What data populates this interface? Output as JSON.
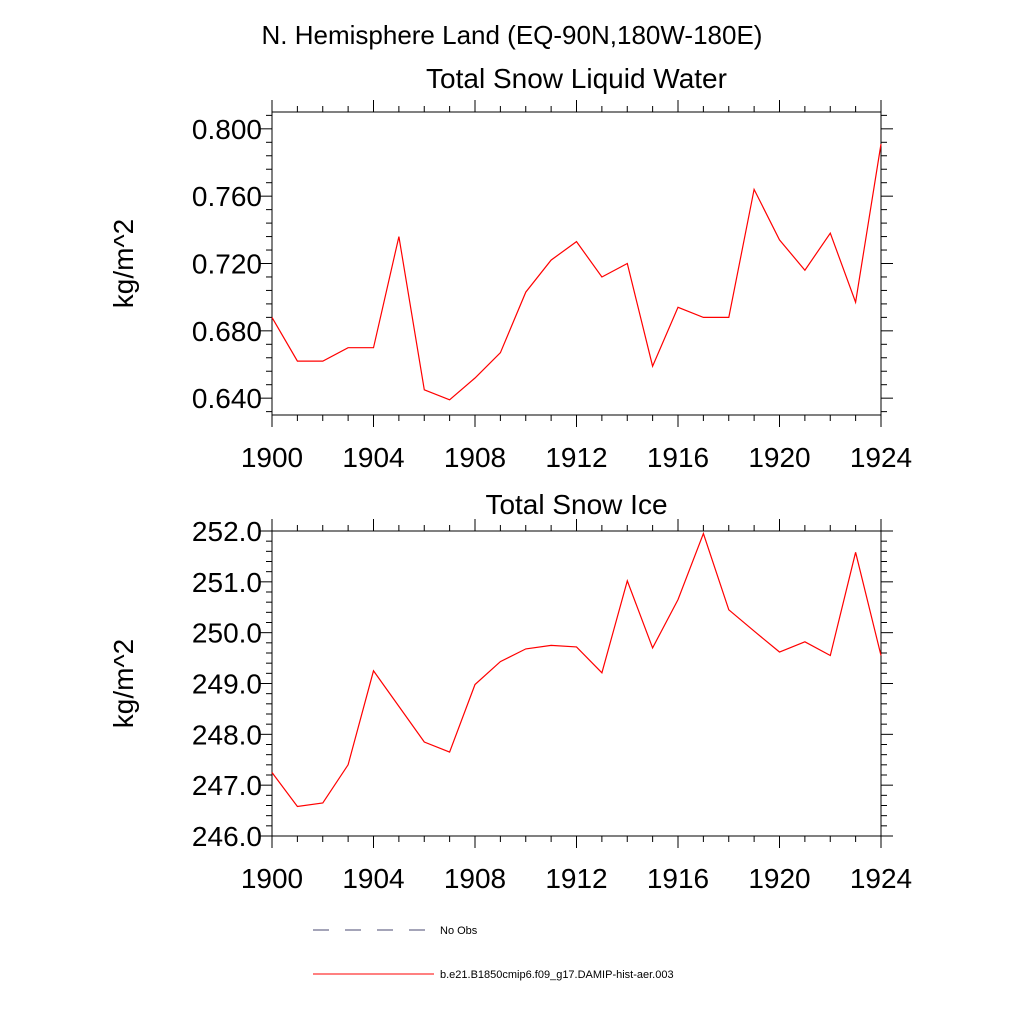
{
  "title": "N. Hemisphere Land (EQ-90N,180W-180E)",
  "chart_data": [
    {
      "type": "line",
      "title": "Total Snow Liquid Water",
      "ylabel": "kg/m^2",
      "xlim": [
        1900,
        1924
      ],
      "ylim": [
        0.63,
        0.81
      ],
      "x_ticks": [
        1900,
        1904,
        1908,
        1912,
        1916,
        1920,
        1924
      ],
      "x_tick_labels": [
        "1900",
        "1904",
        "1908",
        "1912",
        "1916",
        "1920",
        "1924"
      ],
      "y_ticks": [
        0.64,
        0.68,
        0.72,
        0.76,
        0.8
      ],
      "y_tick_labels": [
        "0.640",
        "0.680",
        "0.720",
        "0.760",
        "0.800"
      ],
      "series": [
        {
          "name": "b.e21.B1850cmip6.f09_g17.DAMIP-hist-aer.003",
          "color": "#ff0000",
          "x": [
            1900,
            1901,
            1902,
            1903,
            1904,
            1905,
            1906,
            1907,
            1908,
            1909,
            1910,
            1911,
            1912,
            1913,
            1914,
            1915,
            1916,
            1917,
            1918,
            1919,
            1920,
            1921,
            1922,
            1923,
            1924
          ],
          "y": [
            0.688,
            0.662,
            0.662,
            0.67,
            0.67,
            0.736,
            0.645,
            0.639,
            0.652,
            0.667,
            0.703,
            0.722,
            0.733,
            0.712,
            0.72,
            0.659,
            0.694,
            0.688,
            0.688,
            0.764,
            0.734,
            0.716,
            0.738,
            0.697,
            0.791
          ]
        }
      ]
    },
    {
      "type": "line",
      "title": "Total Snow Ice",
      "ylabel": "kg/m^2",
      "xlim": [
        1900,
        1924
      ],
      "ylim": [
        246.0,
        252.0
      ],
      "x_ticks": [
        1900,
        1904,
        1908,
        1912,
        1916,
        1920,
        1924
      ],
      "x_tick_labels": [
        "1900",
        "1904",
        "1908",
        "1912",
        "1916",
        "1920",
        "1924"
      ],
      "y_ticks": [
        246,
        247,
        248,
        249,
        250,
        251,
        252
      ],
      "y_tick_labels": [
        "246.0",
        "247.0",
        "248.0",
        "249.0",
        "250.0",
        "251.0",
        "252.0"
      ],
      "series": [
        {
          "name": "b.e21.B1850cmip6.f09_g17.DAMIP-hist-aer.003",
          "color": "#ff0000",
          "x": [
            1900,
            1901,
            1902,
            1903,
            1904,
            1905,
            1906,
            1907,
            1908,
            1909,
            1910,
            1911,
            1912,
            1913,
            1914,
            1915,
            1916,
            1917,
            1918,
            1919,
            1920,
            1921,
            1922,
            1923,
            1924
          ],
          "y": [
            247.25,
            246.58,
            246.65,
            247.4,
            249.25,
            248.55,
            247.85,
            247.65,
            248.98,
            249.43,
            249.68,
            249.75,
            249.72,
            249.21,
            251.02,
            249.7,
            250.65,
            251.95,
            250.45,
            250.03,
            249.62,
            249.82,
            249.55,
            251.58,
            249.55
          ]
        }
      ]
    }
  ],
  "legend": [
    {
      "label": "No Obs",
      "style": "dashed",
      "color": "#4a4a72"
    },
    {
      "label": "b.e21.B1850cmip6.f09_g17.DAMIP-hist-aer.003",
      "style": "solid",
      "color": "#ff0000"
    }
  ]
}
